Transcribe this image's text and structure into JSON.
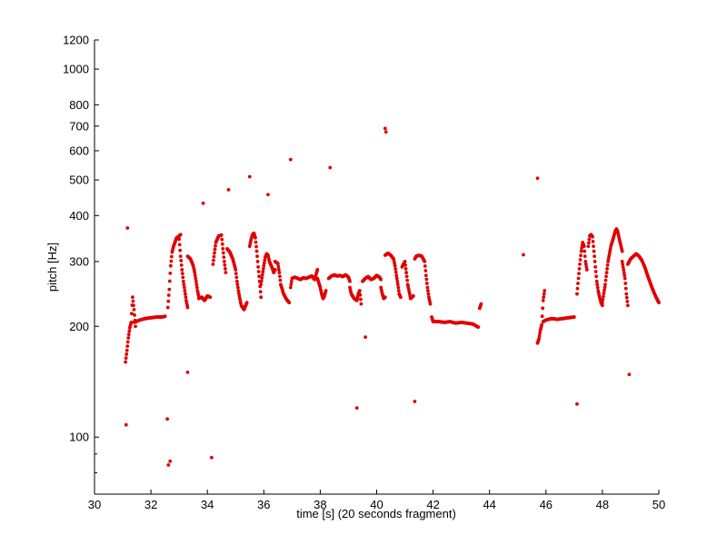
{
  "chart_data": {
    "type": "scatter",
    "title": "",
    "xlabel": "time [s] (20 seconds fragment)",
    "ylabel": "pitch [Hz]",
    "xlim": [
      30,
      50
    ],
    "ylim": [
      70,
      1200
    ],
    "yscale": "log",
    "grid": false,
    "legend": "none",
    "x_ticks": [
      30,
      32,
      34,
      36,
      38,
      40,
      42,
      44,
      46,
      48,
      50
    ],
    "x_tick_labels": [
      "30",
      "32",
      "34",
      "36",
      "38",
      "40",
      "42",
      "44",
      "46",
      "48",
      "50"
    ],
    "y_ticks": [
      100,
      200,
      300,
      400,
      500,
      600,
      700,
      800,
      1000,
      1200
    ],
    "y_tick_labels": [
      "100",
      "200",
      "300",
      "400",
      "500",
      "600",
      "700",
      "800",
      "1000",
      "1200"
    ],
    "y_minor_ticks": [
      80,
      90
    ],
    "marker_color": "#e00000",
    "segments": [
      {
        "x": [
          31.1,
          31.15,
          31.2,
          31.25,
          31.3,
          31.35,
          31.4,
          31.45
        ],
        "y": [
          160,
          172,
          186,
          198,
          205,
          240,
          222,
          200
        ]
      },
      {
        "x": [
          31.4,
          31.6,
          31.8,
          32.0,
          32.2,
          32.4,
          32.5
        ],
        "y": [
          205,
          208,
          210,
          211,
          212,
          212,
          213
        ]
      },
      {
        "x": [
          32.6,
          32.65,
          32.7,
          32.75,
          32.8,
          32.85,
          32.9,
          33.0,
          33.05
        ],
        "y": [
          225,
          252,
          292,
          318,
          330,
          338,
          347,
          352,
          355
        ]
      },
      {
        "x": [
          33.0,
          33.05,
          33.1,
          33.15,
          33.2,
          33.25,
          33.3
        ],
        "y": [
          345,
          310,
          285,
          265,
          250,
          235,
          225
        ]
      },
      {
        "x": [
          33.3,
          33.4,
          33.5,
          33.55,
          33.6,
          33.65,
          33.7
        ],
        "y": [
          310,
          305,
          292,
          280,
          265,
          250,
          240
        ]
      },
      {
        "x": [
          33.7,
          33.8,
          33.9,
          34.0,
          34.1
        ],
        "y": [
          238,
          240,
          235,
          242,
          240
        ]
      },
      {
        "x": [
          34.2,
          34.3,
          34.4,
          34.5,
          34.55,
          34.6,
          34.65
        ],
        "y": [
          295,
          338,
          352,
          354,
          325,
          300,
          280
        ]
      },
      {
        "x": [
          34.7,
          34.8,
          34.9,
          35.0,
          35.05,
          35.1,
          35.15,
          35.2,
          35.3,
          35.4
        ],
        "y": [
          325,
          318,
          305,
          285,
          265,
          250,
          238,
          228,
          222,
          232
        ]
      },
      {
        "x": [
          35.5,
          35.55,
          35.6,
          35.65,
          35.7,
          35.75,
          35.8,
          35.85,
          35.9
        ],
        "y": [
          330,
          345,
          355,
          358,
          348,
          320,
          290,
          265,
          240
        ]
      },
      {
        "x": [
          35.9,
          36.0,
          36.05,
          36.1,
          36.15,
          36.2,
          36.3,
          36.35,
          36.4
        ],
        "y": [
          260,
          292,
          308,
          315,
          312,
          300,
          288,
          280,
          285
        ]
      },
      {
        "x": [
          36.4,
          36.5,
          36.55,
          36.6,
          36.7,
          36.8,
          36.9
        ],
        "y": [
          300,
          296,
          280,
          260,
          245,
          237,
          232
        ]
      },
      {
        "x": [
          36.95,
          37.0,
          37.1,
          37.2,
          37.3,
          37.4,
          37.5,
          37.6,
          37.7,
          37.8,
          37.9
        ],
        "y": [
          255,
          270,
          272,
          270,
          268,
          271,
          270,
          272,
          274,
          268,
          285
        ]
      },
      {
        "x": [
          37.9,
          38.0,
          38.05,
          38.1,
          38.15,
          38.2
        ],
        "y": [
          270,
          255,
          245,
          238,
          242,
          250
        ]
      },
      {
        "x": [
          38.3,
          38.4,
          38.5,
          38.6,
          38.7,
          38.8,
          38.9,
          39.0,
          39.05
        ],
        "y": [
          270,
          274,
          276,
          274,
          275,
          273,
          276,
          272,
          265
        ]
      },
      {
        "x": [
          39.05,
          39.1,
          39.2,
          39.3,
          39.35,
          39.4,
          39.45
        ],
        "y": [
          255,
          245,
          238,
          235,
          245,
          250,
          230
        ]
      },
      {
        "x": [
          39.5,
          39.6,
          39.7,
          39.8,
          39.9,
          40.0,
          40.1,
          40.15
        ],
        "y": [
          265,
          270,
          273,
          268,
          270,
          275,
          272,
          268
        ]
      },
      {
        "x": [
          40.15,
          40.2,
          40.25,
          40.3
        ],
        "y": [
          255,
          245,
          238,
          240
        ]
      },
      {
        "x": [
          40.3,
          40.4,
          40.5,
          40.6,
          40.65,
          40.7,
          40.75,
          40.8,
          40.85
        ],
        "y": [
          312,
          316,
          312,
          305,
          292,
          275,
          260,
          245,
          240
        ]
      },
      {
        "x": [
          40.9,
          41.0,
          41.1,
          41.2,
          41.3
        ],
        "y": [
          290,
          300,
          260,
          238,
          242
        ]
      },
      {
        "x": [
          41.35,
          41.4,
          41.5,
          41.6,
          41.7,
          41.75,
          41.8,
          41.85,
          41.9
        ],
        "y": [
          305,
          310,
          312,
          310,
          300,
          275,
          255,
          240,
          230
        ]
      },
      {
        "x": [
          41.95,
          42.0,
          42.2,
          42.4,
          42.6,
          42.8,
          43.0,
          43.2,
          43.4,
          43.6
        ],
        "y": [
          212,
          206,
          206,
          205,
          206,
          204,
          205,
          204,
          203,
          199
        ]
      },
      {
        "x": [
          43.65,
          43.7
        ],
        "y": [
          224,
          230
        ]
      },
      {
        "x": [
          45.7,
          45.75,
          45.8,
          45.85,
          45.9,
          45.95
        ],
        "y": [
          180,
          185,
          195,
          202,
          235,
          250
        ]
      },
      {
        "x": [
          45.9,
          46.0,
          46.2,
          46.4,
          46.6,
          46.8,
          47.0
        ],
        "y": [
          206,
          208,
          210,
          209,
          210,
          211,
          212
        ]
      },
      {
        "x": [
          47.1,
          47.15,
          47.2,
          47.25,
          47.3,
          47.35,
          47.4,
          47.45
        ],
        "y": [
          245,
          270,
          295,
          320,
          338,
          330,
          300,
          285
        ]
      },
      {
        "x": [
          47.5,
          47.55,
          47.6,
          47.65,
          47.7,
          47.75,
          47.8,
          47.85,
          47.9,
          47.95,
          48.0
        ],
        "y": [
          330,
          352,
          355,
          350,
          320,
          290,
          265,
          250,
          240,
          232,
          228
        ]
      },
      {
        "x": [
          48.0,
          48.1,
          48.2,
          48.3,
          48.4,
          48.45,
          48.5,
          48.55,
          48.6,
          48.7
        ],
        "y": [
          232,
          260,
          300,
          330,
          350,
          362,
          368,
          360,
          345,
          320
        ]
      },
      {
        "x": [
          48.7,
          48.8,
          48.85,
          48.9
        ],
        "y": [
          300,
          270,
          245,
          228
        ]
      },
      {
        "x": [
          48.9,
          49.0,
          49.1,
          49.2,
          49.3,
          49.4,
          49.5,
          49.6,
          49.7,
          49.8,
          49.9,
          50.0
        ],
        "y": [
          295,
          305,
          310,
          315,
          310,
          302,
          290,
          275,
          262,
          250,
          240,
          232
        ]
      }
    ],
    "outliers": {
      "x": [
        31.12,
        31.17,
        32.58,
        32.62,
        32.68,
        33.3,
        33.85,
        34.15,
        34.75,
        35.5,
        36.15,
        36.95,
        38.35,
        39.3,
        39.6,
        40.3,
        40.33,
        41.35,
        45.2,
        45.7,
        47.1,
        48.95
      ],
      "y": [
        108,
        370,
        112,
        84,
        86,
        150,
        432,
        88,
        470,
        510,
        456,
        568,
        540,
        120,
        187,
        690,
        675,
        125,
        313,
        505,
        123,
        148
      ]
    }
  }
}
